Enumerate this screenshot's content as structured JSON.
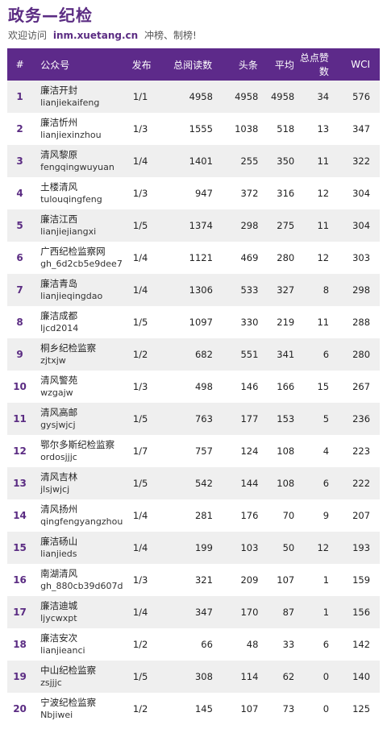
{
  "header": {
    "title": "政务—纪检",
    "visit_prefix": "欢迎访问",
    "site": "inm.xuetang.cn",
    "visit_suffix": "冲榜、制榜!"
  },
  "table": {
    "columns": [
      "#",
      "公众号",
      "发布",
      "总阅读数",
      "头条",
      "平均",
      "总点赞数",
      "WCI"
    ],
    "rows": [
      {
        "rank": "1",
        "name": "廉洁开封",
        "id": "lianjiekaifeng",
        "pub": "1/1",
        "total": "4958",
        "head": "4958",
        "avg": "4958",
        "likes": "34",
        "wci": "576"
      },
      {
        "rank": "2",
        "name": "廉洁忻州",
        "id": "lianjiexinzhou",
        "pub": "1/3",
        "total": "1555",
        "head": "1038",
        "avg": "518",
        "likes": "13",
        "wci": "347"
      },
      {
        "rank": "3",
        "name": "清风黎原",
        "id": "fengqingwuyuan",
        "pub": "1/4",
        "total": "1401",
        "head": "255",
        "avg": "350",
        "likes": "11",
        "wci": "322"
      },
      {
        "rank": "4",
        "name": "土楼清风",
        "id": "tulouqingfeng",
        "pub": "1/3",
        "total": "947",
        "head": "372",
        "avg": "316",
        "likes": "12",
        "wci": "304"
      },
      {
        "rank": "5",
        "name": "廉洁江西",
        "id": "lianjiejiangxi",
        "pub": "1/5",
        "total": "1374",
        "head": "298",
        "avg": "275",
        "likes": "11",
        "wci": "304"
      },
      {
        "rank": "6",
        "name": "广西纪检监察网",
        "id": "gh_6d2cb5e9dee7",
        "pub": "1/4",
        "total": "1121",
        "head": "469",
        "avg": "280",
        "likes": "12",
        "wci": "303"
      },
      {
        "rank": "7",
        "name": "廉洁青岛",
        "id": "lianjieqingdao",
        "pub": "1/4",
        "total": "1306",
        "head": "533",
        "avg": "327",
        "likes": "8",
        "wci": "298"
      },
      {
        "rank": "8",
        "name": "廉洁成都",
        "id": "ljcd2014",
        "pub": "1/5",
        "total": "1097",
        "head": "330",
        "avg": "219",
        "likes": "11",
        "wci": "288"
      },
      {
        "rank": "9",
        "name": "桐乡纪检监察",
        "id": "zjtxjw",
        "pub": "1/2",
        "total": "682",
        "head": "551",
        "avg": "341",
        "likes": "6",
        "wci": "280"
      },
      {
        "rank": "10",
        "name": "清风警苑",
        "id": "wzgajw",
        "pub": "1/3",
        "total": "498",
        "head": "146",
        "avg": "166",
        "likes": "15",
        "wci": "267"
      },
      {
        "rank": "11",
        "name": "清风高邮",
        "id": "gysjwjcj",
        "pub": "1/5",
        "total": "763",
        "head": "177",
        "avg": "153",
        "likes": "5",
        "wci": "236"
      },
      {
        "rank": "12",
        "name": "鄂尔多斯纪检监察",
        "id": "ordosjjjc",
        "pub": "1/7",
        "total": "757",
        "head": "124",
        "avg": "108",
        "likes": "4",
        "wci": "223"
      },
      {
        "rank": "13",
        "name": "清风吉林",
        "id": "jlsjwjcj",
        "pub": "1/5",
        "total": "542",
        "head": "144",
        "avg": "108",
        "likes": "6",
        "wci": "222"
      },
      {
        "rank": "14",
        "name": "清风扬州",
        "id": "qingfengyangzhou",
        "pub": "1/4",
        "total": "281",
        "head": "176",
        "avg": "70",
        "likes": "9",
        "wci": "207"
      },
      {
        "rank": "15",
        "name": "廉洁砀山",
        "id": "lianjieds",
        "pub": "1/4",
        "total": "199",
        "head": "103",
        "avg": "50",
        "likes": "12",
        "wci": "193"
      },
      {
        "rank": "16",
        "name": "南湖清风",
        "id": "gh_880cb39d607d",
        "pub": "1/3",
        "total": "321",
        "head": "209",
        "avg": "107",
        "likes": "1",
        "wci": "159"
      },
      {
        "rank": "17",
        "name": "廉洁迪城",
        "id": "ljycwxpt",
        "pub": "1/4",
        "total": "347",
        "head": "170",
        "avg": "87",
        "likes": "1",
        "wci": "156"
      },
      {
        "rank": "18",
        "name": "廉洁安次",
        "id": "lianjieanci",
        "pub": "1/2",
        "total": "66",
        "head": "48",
        "avg": "33",
        "likes": "6",
        "wci": "142"
      },
      {
        "rank": "19",
        "name": "中山纪检监察",
        "id": "zsjjjc",
        "pub": "1/5",
        "total": "308",
        "head": "114",
        "avg": "62",
        "likes": "0",
        "wci": "140"
      },
      {
        "rank": "20",
        "name": "宁波纪检监察",
        "id": "Nbjiwei",
        "pub": "1/2",
        "total": "145",
        "head": "107",
        "avg": "73",
        "likes": "0",
        "wci": "125"
      }
    ]
  }
}
